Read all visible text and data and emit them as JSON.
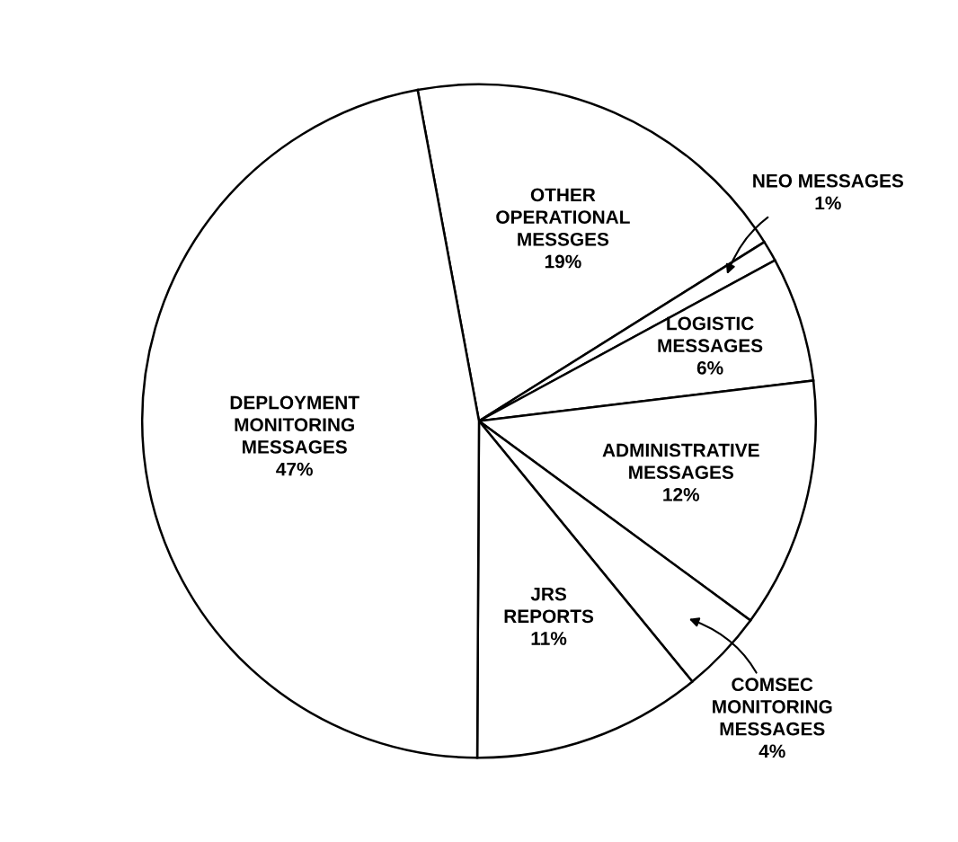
{
  "chart_data": {
    "type": "pie",
    "categories": [
      "OTHER\nOPERATIONAL\nMESSGES",
      "NEO MESSAGES",
      "LOGISTIC\nMESSAGES",
      "ADMINISTRATIVE\nMESSAGES",
      "COMSEC\nMONITORING\nMESSAGES",
      "JRS\nREPORTS",
      "DEPLOYMENT\nMONITORING\nMESSAGES"
    ],
    "values": [
      19,
      1,
      6,
      12,
      4,
      11,
      47
    ],
    "colors": [
      "#ffffff",
      "#ffffff",
      "#ffffff",
      "#ffffff",
      "#ffffff",
      "#ffffff",
      "#ffffff"
    ],
    "value_labels": [
      "19%",
      "1%",
      "6%",
      "12%",
      "4%",
      "11%",
      "47%"
    ]
  }
}
